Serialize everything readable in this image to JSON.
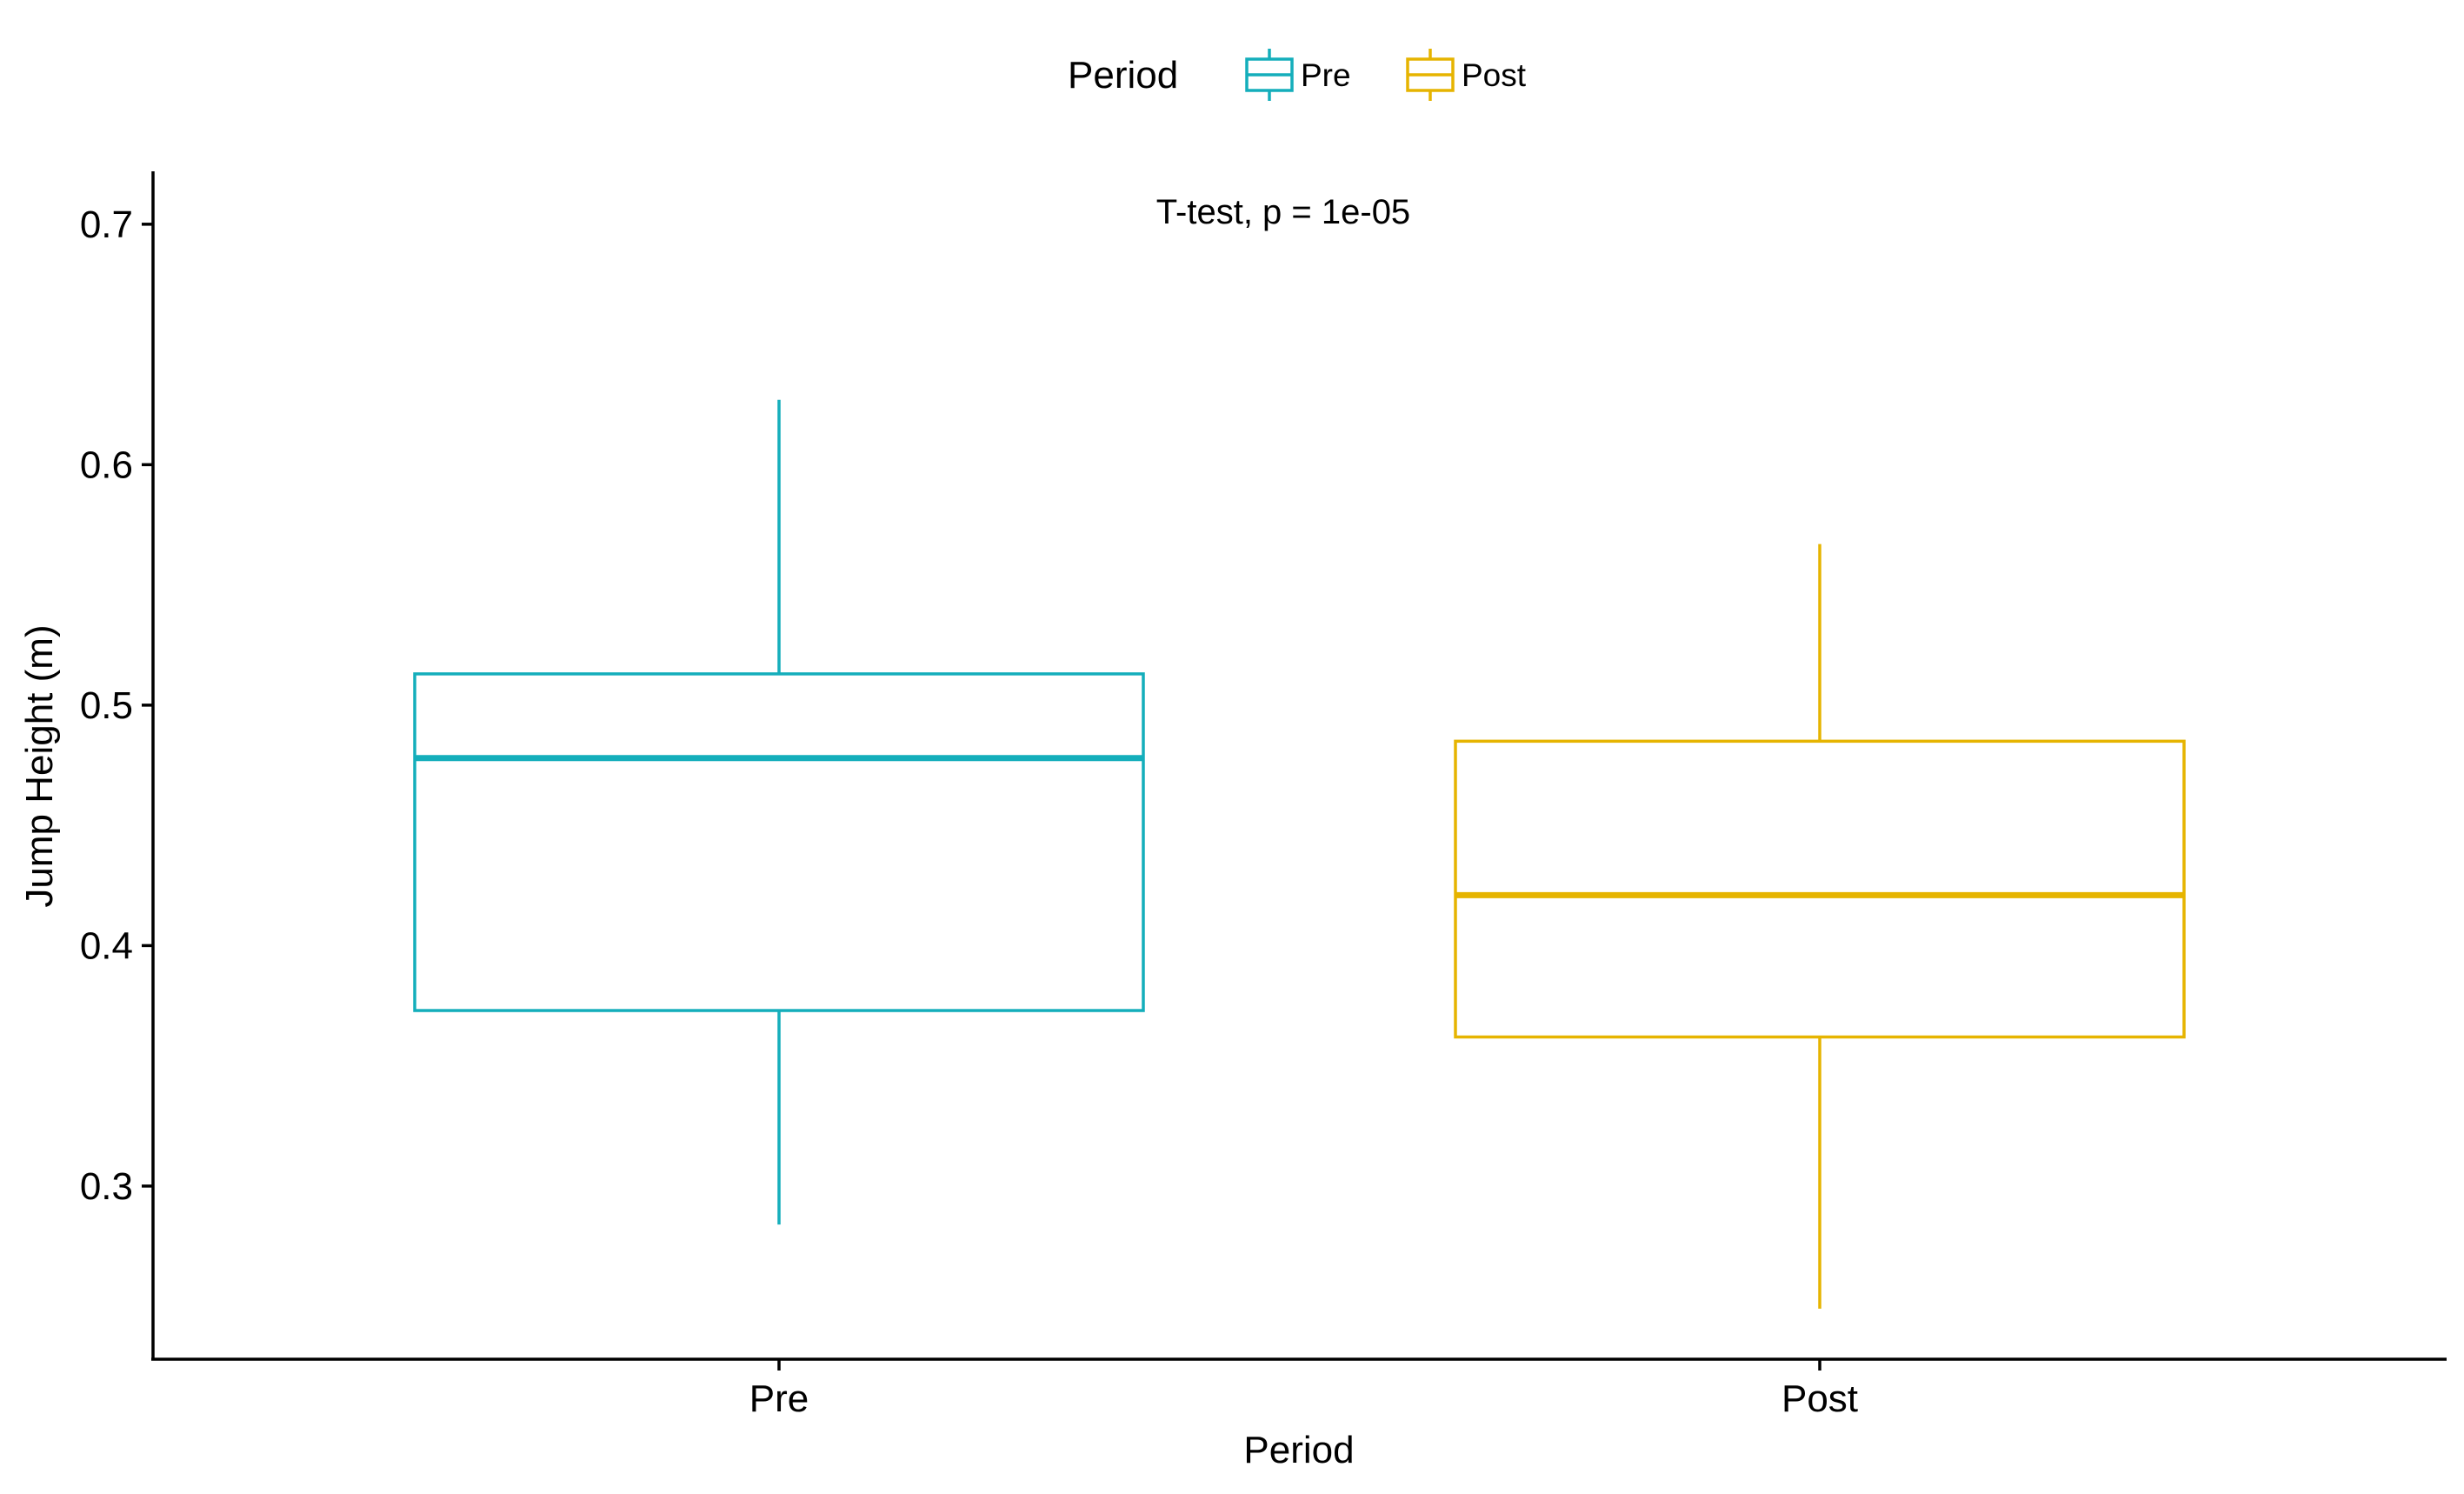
{
  "chart_data": {
    "type": "boxplot",
    "title": "",
    "xlabel": "Period",
    "ylabel": "Jump Height (m)",
    "ylim": [
      0.228,
      0.722
    ],
    "yticks": [
      0.3,
      0.4,
      0.5,
      0.6,
      0.7
    ],
    "ytick_labels": [
      "0.3",
      "0.4",
      "0.5",
      "0.6",
      "0.7"
    ],
    "categories": [
      "Pre",
      "Post"
    ],
    "annotation": "T-test, p = 1e-05",
    "legend": {
      "title": "Period",
      "position": "top",
      "entries": [
        "Pre",
        "Post"
      ]
    },
    "series": [
      {
        "name": "Pre",
        "color": "#14AEBB",
        "min": 0.284,
        "q1": 0.373,
        "median": 0.478,
        "q3": 0.513,
        "max": 0.627
      },
      {
        "name": "Post",
        "color": "#E6B400",
        "min": 0.249,
        "q1": 0.362,
        "median": 0.421,
        "q3": 0.485,
        "max": 0.567
      }
    ],
    "grid": false
  }
}
